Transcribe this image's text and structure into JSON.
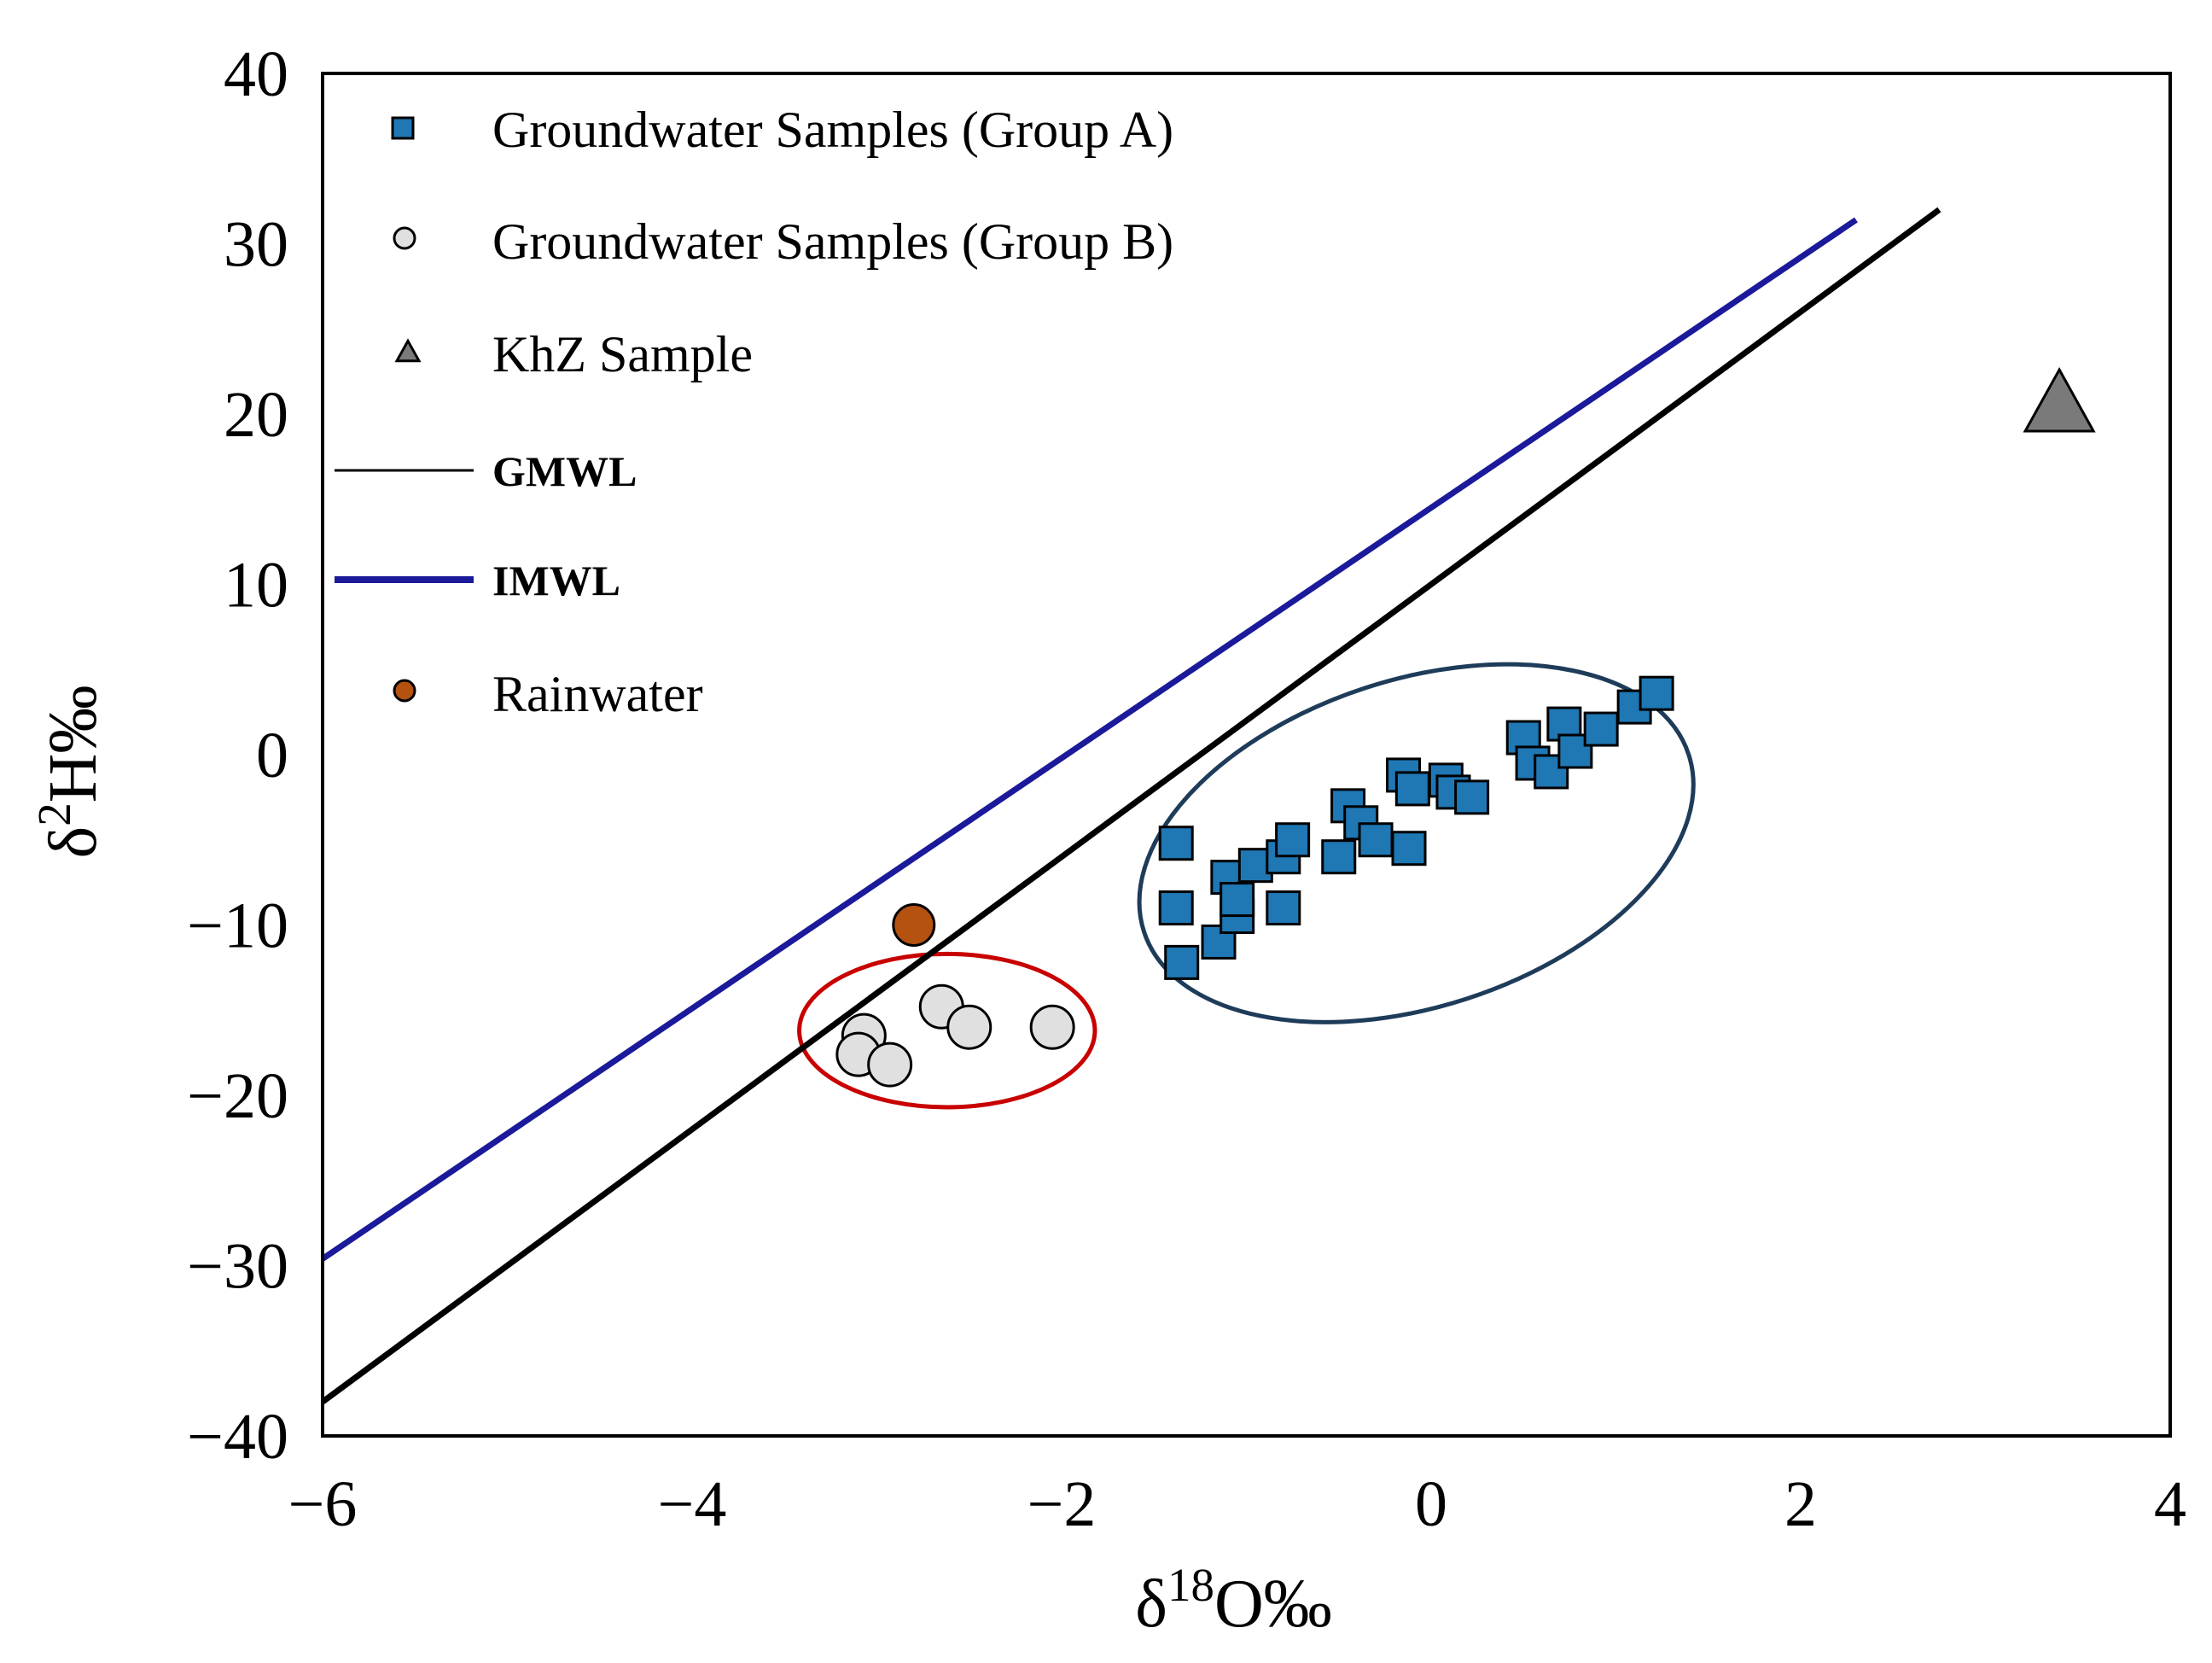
{
  "chart_data": {
    "type": "scatter",
    "xlabel": {
      "base": "δ",
      "sup": "18",
      "rest": "O‰"
    },
    "ylabel": {
      "base": "δ",
      "sup": "2",
      "rest": "H‰"
    },
    "xlim": [
      -6,
      4
    ],
    "ylim": [
      -40,
      40
    ],
    "x_ticks": [
      "−6",
      "−4",
      "−2",
      "0",
      "2",
      "4"
    ],
    "x_tick_values": [
      -6,
      -4,
      -2,
      0,
      2,
      4
    ],
    "y_ticks": [
      "40",
      "30",
      "20",
      "10",
      "0",
      "−10",
      "−20",
      "−30",
      "−40"
    ],
    "y_tick_values": [
      40,
      30,
      20,
      10,
      0,
      -10,
      -20,
      -30,
      -40
    ],
    "grid": false,
    "legend_position": "top-left",
    "legend": [
      {
        "label": "Groundwater Samples (Group A)",
        "marker": "square",
        "color": "#1f77b4"
      },
      {
        "label": "Groundwater Samples (Group B)",
        "marker": "circle",
        "color": "#e0e0e0"
      },
      {
        "label": "KhZ Sample",
        "marker": "triangle",
        "color": "#7a7a7a"
      },
      {
        "label": "GMWL",
        "marker": "line",
        "color": "#000000"
      },
      {
        "label": "IMWL",
        "marker": "line",
        "color": "#1a1a9a"
      },
      {
        "label": "Rainwater",
        "marker": "circle",
        "color": "#b5520f"
      }
    ],
    "series": [
      {
        "name": "Groundwater Samples (Group A)",
        "marker": "square",
        "color": "#1f77b4",
        "points": [
          [
            -1.38,
            -5.2
          ],
          [
            -1.38,
            -9.0
          ],
          [
            -1.35,
            -12.2
          ],
          [
            -1.15,
            -11.0
          ],
          [
            -1.05,
            -9.5
          ],
          [
            -1.1,
            -7.2
          ],
          [
            -1.05,
            -8.5
          ],
          [
            -0.95,
            -6.5
          ],
          [
            -0.8,
            -6.0
          ],
          [
            -0.8,
            -9.0
          ],
          [
            -0.75,
            -5.0
          ],
          [
            -0.5,
            -6.0
          ],
          [
            -0.45,
            -3.0
          ],
          [
            -0.38,
            -4.0
          ],
          [
            -0.3,
            -5.0
          ],
          [
            -0.12,
            -5.5
          ],
          [
            -0.15,
            -1.2
          ],
          [
            -0.1,
            -2.0
          ],
          [
            0.08,
            -1.5
          ],
          [
            0.12,
            -2.2
          ],
          [
            0.22,
            -2.5
          ],
          [
            0.5,
            1.0
          ],
          [
            0.55,
            -0.5
          ],
          [
            0.65,
            -1.0
          ],
          [
            0.72,
            1.8
          ],
          [
            0.78,
            0.2
          ],
          [
            0.92,
            1.5
          ],
          [
            1.1,
            2.8
          ],
          [
            1.22,
            3.6
          ]
        ]
      },
      {
        "name": "Groundwater Samples (Group B)",
        "marker": "circle",
        "color": "#e0e0e0",
        "points": [
          [
            -3.07,
            -16.5
          ],
          [
            -3.1,
            -17.6
          ],
          [
            -2.93,
            -18.2
          ],
          [
            -2.65,
            -14.8
          ],
          [
            -2.5,
            -16.0
          ],
          [
            -2.05,
            -16.0
          ]
        ]
      },
      {
        "name": "KhZ Sample",
        "marker": "triangle",
        "color": "#7a7a7a",
        "points": [
          [
            3.4,
            20.8
          ]
        ]
      },
      {
        "name": "Rainwater",
        "marker": "circle",
        "color": "#b5520f",
        "points": [
          [
            -2.8,
            -10.0
          ]
        ]
      }
    ],
    "lines": [
      {
        "name": "GMWL",
        "color": "#000000",
        "slope": 8,
        "intercept": 10,
        "x_range": [
          -6,
          2.75
        ]
      },
      {
        "name": "IMWL",
        "color": "#1a1a9a",
        "slope": 7.35,
        "intercept": 14.5,
        "x_range": [
          -6,
          2.3
        ]
      }
    ],
    "ellipses": [
      {
        "color": "#c80000",
        "center": [
          -2.62,
          -16.2
        ],
        "semi_x": 0.8,
        "semi_y": 4.5,
        "rotation_deg": 0
      },
      {
        "color": "#1e3c5a",
        "center": [
          -0.08,
          -5.2
        ],
        "semi_x": 1.55,
        "semi_y": 9.6,
        "rotation_deg": -18
      }
    ]
  }
}
